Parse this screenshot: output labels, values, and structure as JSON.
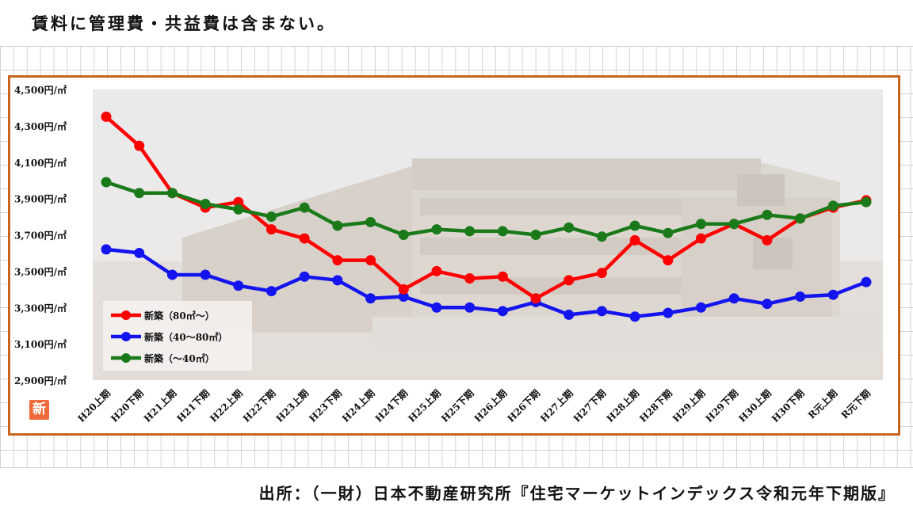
{
  "header": {
    "note": "賃料に管理費・共益費は含まない。"
  },
  "footer": {
    "source": "出所：（一財）日本不動産研究所『住宅マーケットインデックス令和元年下期版』"
  },
  "badge": {
    "label": "新"
  },
  "colors": {
    "frame": "#c8641e",
    "series_80": "#ff0000",
    "series_40_80": "#1414ee",
    "series_40": "#1a7a1a"
  },
  "chart_data": {
    "type": "line",
    "categories": [
      "H20上期",
      "H20下期",
      "H21上期",
      "H21下期",
      "H22上期",
      "H22下期",
      "H23上期",
      "H23下期",
      "H24上期",
      "H24下期",
      "H25上期",
      "H25下期",
      "H26上期",
      "H26下期",
      "H27上期",
      "H27下期",
      "H28上期",
      "H28下期",
      "H29上期",
      "H29下期",
      "H30上期",
      "H30下期",
      "R元上期",
      "R元下期"
    ],
    "ylim": [
      2900,
      4500
    ],
    "yticks": [
      2900,
      3100,
      3300,
      3500,
      3700,
      3900,
      4100,
      4300,
      4500
    ],
    "ytick_labels": [
      "2,900円/㎡",
      "3,100円/㎡",
      "3,300円/㎡",
      "3,500円/㎡",
      "3,700円/㎡",
      "3,900円/㎡",
      "4,100円/㎡",
      "4,300円/㎡",
      "4,500円/㎡"
    ],
    "legend_placement": "bottom-left",
    "series": [
      {
        "name": "新築（80㎡～）",
        "color": "#ff0000",
        "values": [
          4350,
          4190,
          3930,
          3850,
          3880,
          3730,
          3680,
          3560,
          3560,
          3400,
          3500,
          3460,
          3470,
          3350,
          3450,
          3490,
          3670,
          3560,
          3680,
          3760,
          3670,
          3790,
          3850,
          3890
        ]
      },
      {
        "name": "新築（40～80㎡）",
        "color": "#1414ee",
        "values": [
          3620,
          3600,
          3480,
          3480,
          3420,
          3390,
          3470,
          3450,
          3350,
          3360,
          3300,
          3300,
          3280,
          3330,
          3260,
          3280,
          3250,
          3270,
          3300,
          3350,
          3320,
          3360,
          3370,
          3440
        ]
      },
      {
        "name": "新築（～40㎡）",
        "color": "#1a7a1a",
        "values": [
          3990,
          3930,
          3930,
          3870,
          3840,
          3800,
          3850,
          3750,
          3770,
          3700,
          3730,
          3720,
          3720,
          3700,
          3740,
          3690,
          3750,
          3710,
          3760,
          3760,
          3810,
          3790,
          3860,
          3880
        ]
      }
    ]
  }
}
